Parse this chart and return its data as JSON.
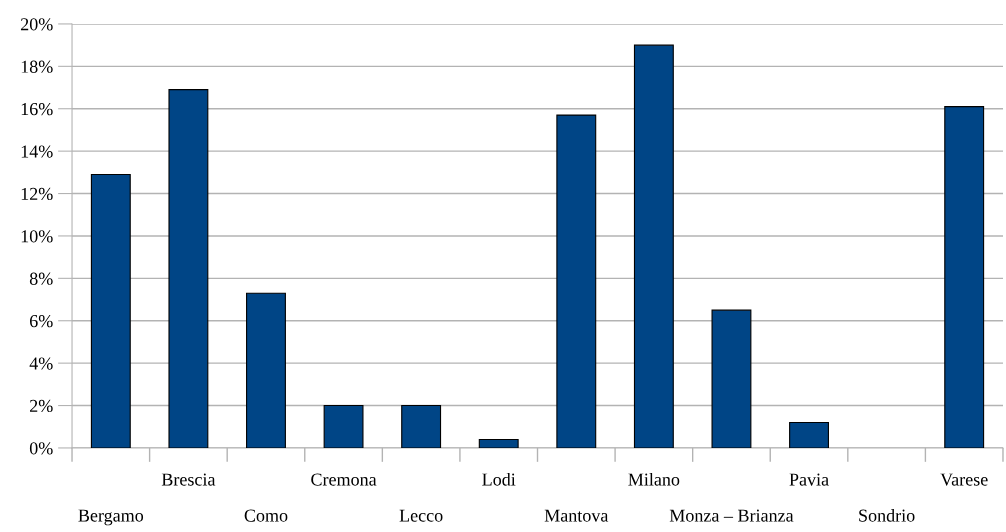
{
  "chart_data": {
    "type": "bar",
    "categories": [
      "Bergamo",
      "Brescia",
      "Como",
      "Cremona",
      "Lecco",
      "Lodi",
      "Mantova",
      "Milano",
      "Monza – Brianza",
      "Pavia",
      "Sondrio",
      "Varese"
    ],
    "values": [
      12.9,
      16.9,
      7.3,
      2.0,
      2.0,
      0.4,
      15.7,
      19.0,
      6.5,
      1.2,
      0,
      16.1
    ],
    "color": "#004586",
    "ylim": [
      0,
      20
    ],
    "yticks": [
      {
        "value": 0,
        "label": "0%"
      },
      {
        "value": 2,
        "label": "2%"
      },
      {
        "value": 4,
        "label": "4%"
      },
      {
        "value": 6,
        "label": "6%"
      },
      {
        "value": 8,
        "label": "8%"
      },
      {
        "value": 10,
        "label": "10%"
      },
      {
        "value": 12,
        "label": "12%"
      },
      {
        "value": 14,
        "label": "14%"
      },
      {
        "value": 16,
        "label": "16%"
      },
      {
        "value": 18,
        "label": "18%"
      },
      {
        "value": 20,
        "label": "20%"
      }
    ],
    "grid": "y",
    "legend": false
  }
}
